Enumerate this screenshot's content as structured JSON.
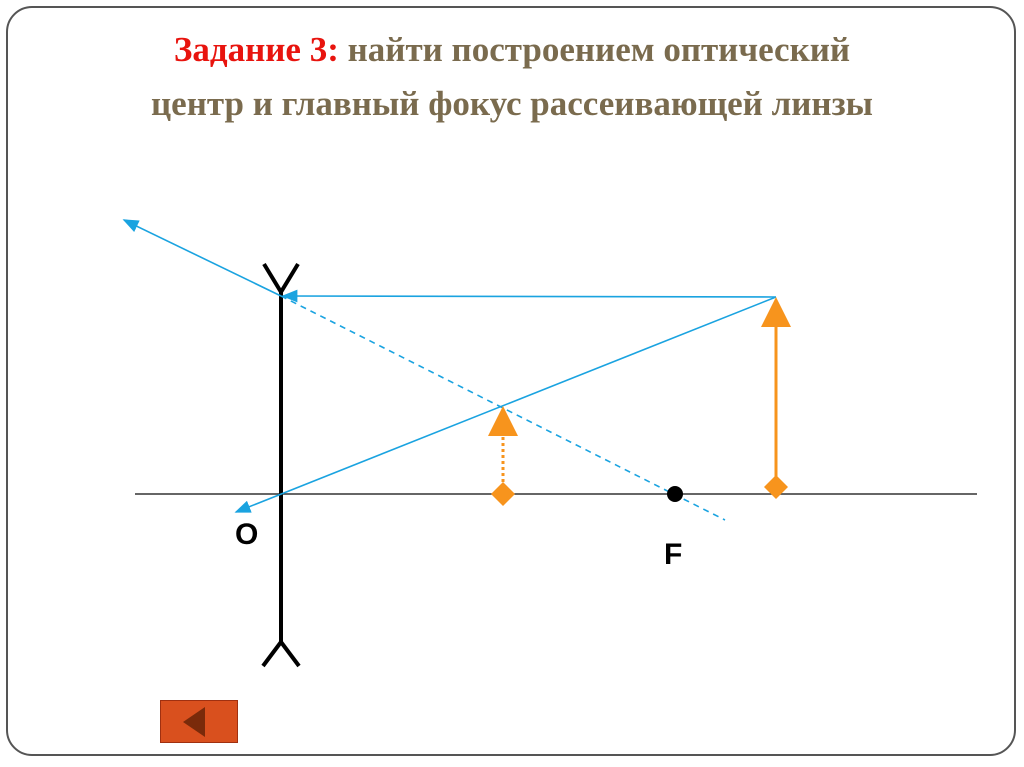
{
  "title": {
    "task_label": "Задание 3:",
    "line1": " найти построением оптический",
    "line2": "центр и главный фокус рассеивающей линзы"
  },
  "labels": {
    "optical_center": "O",
    "focus": "F"
  },
  "colors": {
    "title_accent": "#e8140e",
    "title_text": "#7a6b4e",
    "ray": "#1aa3e0",
    "object": "#f7941d",
    "nav_button": "#d9501e"
  },
  "nav": {
    "back_icon": "triangle-left-icon"
  }
}
